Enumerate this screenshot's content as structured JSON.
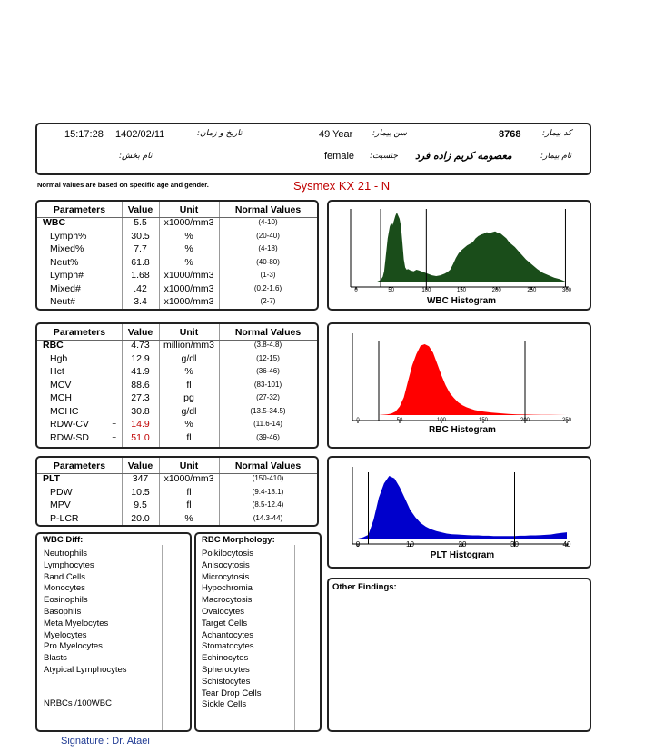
{
  "header": {
    "time": "15:17:28",
    "date": "1402/02/11",
    "date_label": "تاریخ و زمان:",
    "age": "49 Year",
    "age_label": "سن بیمار:",
    "patient_code": "8768",
    "patient_code_label": "کد بیمار:",
    "ward_label": "نام بخش:",
    "gender": "female",
    "gender_label": "جنسیت:",
    "patient_name": "معصومه کریم زاده فرد",
    "patient_name_label": "نام بیمار:"
  },
  "note": "Normal values are based on specific age and gender.",
  "device": "Sysmex KX 21 - N",
  "columns": {
    "parameters": "Parameters",
    "value": "Value",
    "unit": "Unit",
    "normal": "Normal Values"
  },
  "wbc_table": [
    {
      "name": "WBC",
      "value": "5.5",
      "unit": "x1000/mm3",
      "normal": "(4-10)",
      "flag": ""
    },
    {
      "name": "Lymph%",
      "value": "30.5",
      "unit": "%",
      "normal": "(20-40)",
      "flag": ""
    },
    {
      "name": "Mixed%",
      "value": "7.7",
      "unit": "%",
      "normal": "(4-18)",
      "flag": ""
    },
    {
      "name": "Neut%",
      "value": "61.8",
      "unit": "%",
      "normal": "(40-80)",
      "flag": ""
    },
    {
      "name": "Lymph#",
      "value": "1.68",
      "unit": "x1000/mm3",
      "normal": "(1-3)",
      "flag": ""
    },
    {
      "name": "Mixed#",
      "value": ".42",
      "unit": "x1000/mm3",
      "normal": "(0.2-1.6)",
      "flag": ""
    },
    {
      "name": "Neut#",
      "value": "3.4",
      "unit": "x1000/mm3",
      "normal": "(2-7)",
      "flag": ""
    }
  ],
  "rbc_table": [
    {
      "name": "RBC",
      "value": "4.73",
      "unit": "million/mm3",
      "normal": "(3.8-4.8)",
      "flag": ""
    },
    {
      "name": "Hgb",
      "value": "12.9",
      "unit": "g/dl",
      "normal": "(12-15)",
      "flag": ""
    },
    {
      "name": "Hct",
      "value": "41.9",
      "unit": "%",
      "normal": "(36-46)",
      "flag": ""
    },
    {
      "name": "MCV",
      "value": "88.6",
      "unit": "fl",
      "normal": "(83-101)",
      "flag": ""
    },
    {
      "name": "MCH",
      "value": "27.3",
      "unit": "pg",
      "normal": "(27-32)",
      "flag": ""
    },
    {
      "name": "MCHC",
      "value": "30.8",
      "unit": "g/dl",
      "normal": "(13.5-34.5)",
      "flag": ""
    },
    {
      "name": "RDW-CV",
      "value": "14.9",
      "unit": "%",
      "normal": "(11.6-14)",
      "flag": "+"
    },
    {
      "name": "RDW-SD",
      "value": "51.0",
      "unit": "fl",
      "normal": "(39-46)",
      "flag": "+"
    }
  ],
  "plt_table": [
    {
      "name": "PLT",
      "value": "347",
      "unit": "x1000/mm3",
      "normal": "(150-410)",
      "flag": ""
    },
    {
      "name": "PDW",
      "value": "10.5",
      "unit": "fl",
      "normal": "(9.4-18.1)",
      "flag": ""
    },
    {
      "name": "MPV",
      "value": "9.5",
      "unit": "fl",
      "normal": "(8.5-12.4)",
      "flag": ""
    },
    {
      "name": "P-LCR",
      "value": "20.0",
      "unit": "%",
      "normal": "(14.3-44)",
      "flag": ""
    }
  ],
  "wbc_diff": {
    "title": "WBC Diff:",
    "items": [
      "Neutrophils",
      "Lymphocytes",
      "Band Cells",
      "Monocytes",
      "Eosinophils",
      "Basophils",
      "Meta Myelocytes",
      "Myelocytes",
      "Pro Myelocytes",
      "Blasts",
      "Atypical Lymphocytes"
    ],
    "nrbc": "NRBCs /100WBC"
  },
  "rbc_morph": {
    "title": "RBC Morphology:",
    "items": [
      "Poikilocytosis",
      "Anisocytosis",
      "Microcytosis",
      "Hypochromia",
      "Macrocytosis",
      "Ovalocytes",
      "Target Cells",
      "Achantocytes",
      "Stomatocytes",
      "Echinocytes",
      "Spherocytes",
      "Schistocytes",
      "Tear Drop Cells",
      "Sickle Cells"
    ]
  },
  "other_findings": "Other Findings:",
  "signature": "Signature : Dr. Ataei",
  "chart_data": [
    {
      "type": "area",
      "title": "WBC Histogram",
      "xlim": [
        0,
        300
      ],
      "xticks": [
        "0",
        "50",
        "100",
        "150",
        "200",
        "250",
        "300"
      ],
      "discriminators": [
        35,
        100,
        298
      ],
      "color": "#1a4d1a",
      "x": [
        0,
        10,
        20,
        30,
        35,
        38,
        40,
        42,
        45,
        48,
        50,
        52,
        54,
        56,
        58,
        60,
        62,
        64,
        66,
        68,
        70,
        72,
        74,
        78,
        82,
        86,
        90,
        96,
        102,
        108,
        114,
        120,
        126,
        130,
        134,
        138,
        142,
        146,
        150,
        154,
        158,
        162,
        166,
        170,
        174,
        178,
        182,
        186,
        190,
        194,
        198,
        202,
        206,
        210,
        214,
        218,
        222,
        226,
        230,
        236,
        242,
        250,
        258,
        266,
        274,
        282,
        290,
        298
      ],
      "y": [
        0,
        0,
        0,
        0,
        2,
        6,
        13,
        30,
        55,
        70,
        75,
        72,
        78,
        84,
        88,
        84,
        80,
        70,
        50,
        28,
        18,
        15,
        16,
        14,
        13,
        15,
        14,
        12,
        10,
        8,
        7,
        8,
        10,
        12,
        15,
        22,
        30,
        36,
        40,
        43,
        46,
        48,
        50,
        55,
        58,
        60,
        61,
        63,
        62,
        63,
        64,
        62,
        61,
        58,
        55,
        50,
        47,
        44,
        40,
        34,
        28,
        22,
        16,
        11,
        8,
        5,
        3,
        0
      ]
    },
    {
      "type": "area",
      "title": "RBC Histogram",
      "xlim": [
        0,
        250
      ],
      "xticks": [
        "0",
        "50",
        "100",
        "150",
        "200",
        "250"
      ],
      "discriminators": [
        25,
        200
      ],
      "color": "#ff0000",
      "x": [
        0,
        20,
        25,
        30,
        35,
        40,
        45,
        50,
        55,
        60,
        65,
        70,
        75,
        80,
        85,
        90,
        95,
        100,
        105,
        110,
        115,
        120,
        125,
        130,
        135,
        140,
        150,
        160,
        170,
        180,
        190,
        200,
        210,
        220,
        230,
        240,
        250
      ],
      "y": [
        0,
        0,
        0,
        0.5,
        1,
        2,
        5,
        12,
        25,
        48,
        70,
        86,
        98,
        100,
        97,
        88,
        72,
        56,
        42,
        31,
        24,
        18,
        14,
        11,
        9,
        7,
        5,
        3.5,
        2.5,
        1.5,
        1,
        0.8,
        0.5,
        0.3,
        0.2,
        0.1,
        0
      ]
    },
    {
      "type": "area",
      "title": "PLT Histogram",
      "xlim": [
        0,
        40
      ],
      "xticks": [
        "0",
        "10",
        "20",
        "30",
        "40"
      ],
      "discriminators": [
        2,
        30
      ],
      "color": "#0000cc",
      "x": [
        0,
        1,
        2,
        3,
        4,
        5,
        6,
        7,
        8,
        9,
        10,
        11,
        12,
        13,
        14,
        15,
        16,
        17,
        18,
        19,
        20,
        21,
        22,
        23,
        24,
        25,
        26,
        27,
        28,
        29,
        30,
        31,
        32,
        33,
        34,
        35,
        36,
        37,
        38,
        39,
        40
      ],
      "y": [
        0,
        2,
        6,
        30,
        65,
        88,
        100,
        96,
        82,
        64,
        46,
        34,
        25,
        19,
        15,
        12,
        10,
        8,
        7,
        6.5,
        6,
        5.5,
        5,
        5,
        4.5,
        4.5,
        4,
        4,
        4,
        4,
        4,
        4.5,
        4.5,
        5,
        5,
        5.5,
        6,
        6.5,
        8,
        9,
        10
      ]
    }
  ]
}
